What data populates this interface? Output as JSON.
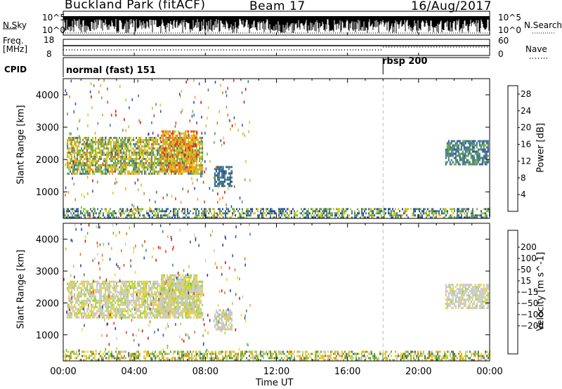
{
  "header": {
    "title": "Buckland Park (fitACF)",
    "beam": "Beam 17",
    "date": "16/Aug/2017"
  },
  "noise_panel": {
    "left_label": "N.Sky",
    "right_label": "N.Search",
    "tick_top": "10^5",
    "tick_bottom": "10^0"
  },
  "freq_panel": {
    "left_label": "Freq.",
    "units": "[MHz]",
    "tick_top": "18",
    "tick_bottom": "8",
    "right_tick_top": "60",
    "right_tick_bottom": "0",
    "right_label": "Nave"
  },
  "cpid_panel": {
    "label": "CPID",
    "modes": [
      {
        "name": "normal (fast) 151",
        "start_hour": 0
      },
      {
        "name": "rbsp 200",
        "start_hour": 18
      }
    ]
  },
  "colors": {
    "power": [
      "#1f3fd6",
      "#2b4fb0",
      "#3d6e8e",
      "#4f8f6a",
      "#6fae3c",
      "#a7c832",
      "#e8c21c",
      "#f29f18",
      "#ee6a10",
      "#e8301a",
      "#e00000"
    ],
    "velocity": [
      "#1c2ecc",
      "#2a4aa8",
      "#3d7f6a",
      "#63ad3a",
      "#9ed33c",
      "#c8c8c8",
      "#f2d21c",
      "#f4a51a",
      "#ee6a10",
      "#e83a14",
      "#e00000"
    ]
  },
  "chart_data": [
    {
      "type": "heatmap",
      "name": "Power",
      "ylabel": "Slant Range [km]",
      "xlabel": "Time UT",
      "x_ticks": [
        "00:00",
        "04:00",
        "08:00",
        "12:00",
        "16:00",
        "20:00",
        "00:00"
      ],
      "xlim_hours": [
        0,
        24
      ],
      "y_ticks": [
        1000,
        2000,
        3000,
        4000
      ],
      "ylim": [
        180,
        4500
      ],
      "colorbar": {
        "label": "Power [dB]",
        "ticks": [
          4,
          8,
          12,
          16,
          20,
          24,
          28
        ],
        "range": [
          0,
          30
        ]
      },
      "mode_change_hour": 18,
      "regions": [
        {
          "t_start": 0.2,
          "t_end": 7.8,
          "r_low": 1550,
          "r_high": 2700,
          "value_range": [
            6,
            22
          ]
        },
        {
          "t_start": 5.5,
          "t_end": 7.5,
          "r_low": 1650,
          "r_high": 2900,
          "value_range": [
            14,
            26
          ]
        },
        {
          "t_start": 8.5,
          "t_end": 9.5,
          "r_low": 1200,
          "r_high": 1800,
          "value_range": [
            4,
            10
          ]
        },
        {
          "t_start": 21.5,
          "t_end": 23.9,
          "r_low": 1850,
          "r_high": 2600,
          "value_range": [
            4,
            12
          ]
        },
        {
          "t_start": 0,
          "t_end": 24,
          "r_low": 200,
          "r_high": 500,
          "value_range": [
            2,
            18
          ]
        }
      ]
    },
    {
      "type": "heatmap",
      "name": "Velocity",
      "ylabel": "Slant Range [km]",
      "xlabel": "Time UT",
      "x_ticks": [
        "00:00",
        "04:00",
        "08:00",
        "12:00",
        "16:00",
        "20:00",
        "00:00"
      ],
      "xlim_hours": [
        0,
        24
      ],
      "y_ticks": [
        1000,
        2000,
        3000,
        4000
      ],
      "ylim": [
        180,
        4500
      ],
      "colorbar": {
        "label": "Velocity [m s^-1]",
        "ticks": [
          "200",
          "100",
          "50",
          "15",
          "−15",
          "−50",
          "−100",
          "−200"
        ],
        "range": [
          -250,
          250
        ]
      },
      "mode_change_hour": 18,
      "regions": [
        {
          "t_start": 0.2,
          "t_end": 7.8,
          "r_low": 1550,
          "r_high": 2700,
          "value_range": [
            -40,
            40
          ]
        },
        {
          "t_start": 5.5,
          "t_end": 7.5,
          "r_low": 1650,
          "r_high": 2900,
          "value_range": [
            -40,
            40
          ]
        },
        {
          "t_start": 8.5,
          "t_end": 9.5,
          "r_low": 1200,
          "r_high": 1800,
          "value_range": [
            -30,
            30
          ]
        },
        {
          "t_start": 21.5,
          "t_end": 23.9,
          "r_low": 1850,
          "r_high": 2600,
          "value_range": [
            -30,
            30
          ]
        },
        {
          "t_start": 0,
          "t_end": 24,
          "r_low": 200,
          "r_high": 500,
          "value_range": [
            -150,
            120
          ]
        }
      ]
    }
  ]
}
